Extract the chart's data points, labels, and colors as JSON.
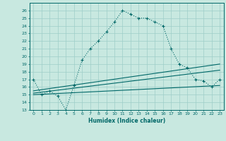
{
  "title": "",
  "xlabel": "Humidex (Indice chaleur)",
  "bg_color": "#c8e8e0",
  "grid_color": "#9ecec8",
  "line_color": "#006868",
  "xlim": [
    -0.5,
    23.5
  ],
  "ylim": [
    13,
    27
  ],
  "xticks": [
    0,
    1,
    2,
    3,
    4,
    5,
    6,
    7,
    8,
    9,
    10,
    11,
    12,
    13,
    14,
    15,
    16,
    17,
    18,
    19,
    20,
    21,
    22,
    23
  ],
  "yticks": [
    13,
    14,
    15,
    16,
    17,
    18,
    19,
    20,
    21,
    22,
    23,
    24,
    25,
    26
  ],
  "main_x": [
    0,
    1,
    2,
    3,
    4,
    5,
    6,
    7,
    8,
    9,
    10,
    11,
    12,
    13,
    14,
    15,
    16,
    17,
    18,
    19,
    20,
    21,
    22,
    23
  ],
  "main_y": [
    17.0,
    15.0,
    15.5,
    14.8,
    13.0,
    16.2,
    19.5,
    21.0,
    22.0,
    23.2,
    24.5,
    26.0,
    25.5,
    25.0,
    25.0,
    24.5,
    24.0,
    21.0,
    19.0,
    18.5,
    17.0,
    16.8,
    16.0,
    17.0
  ],
  "line2_x": [
    0,
    23
  ],
  "line2_y": [
    15.5,
    19.0
  ],
  "line3_x": [
    0,
    23
  ],
  "line3_y": [
    15.2,
    18.2
  ],
  "line4_x": [
    0,
    23
  ],
  "line4_y": [
    15.0,
    16.2
  ]
}
